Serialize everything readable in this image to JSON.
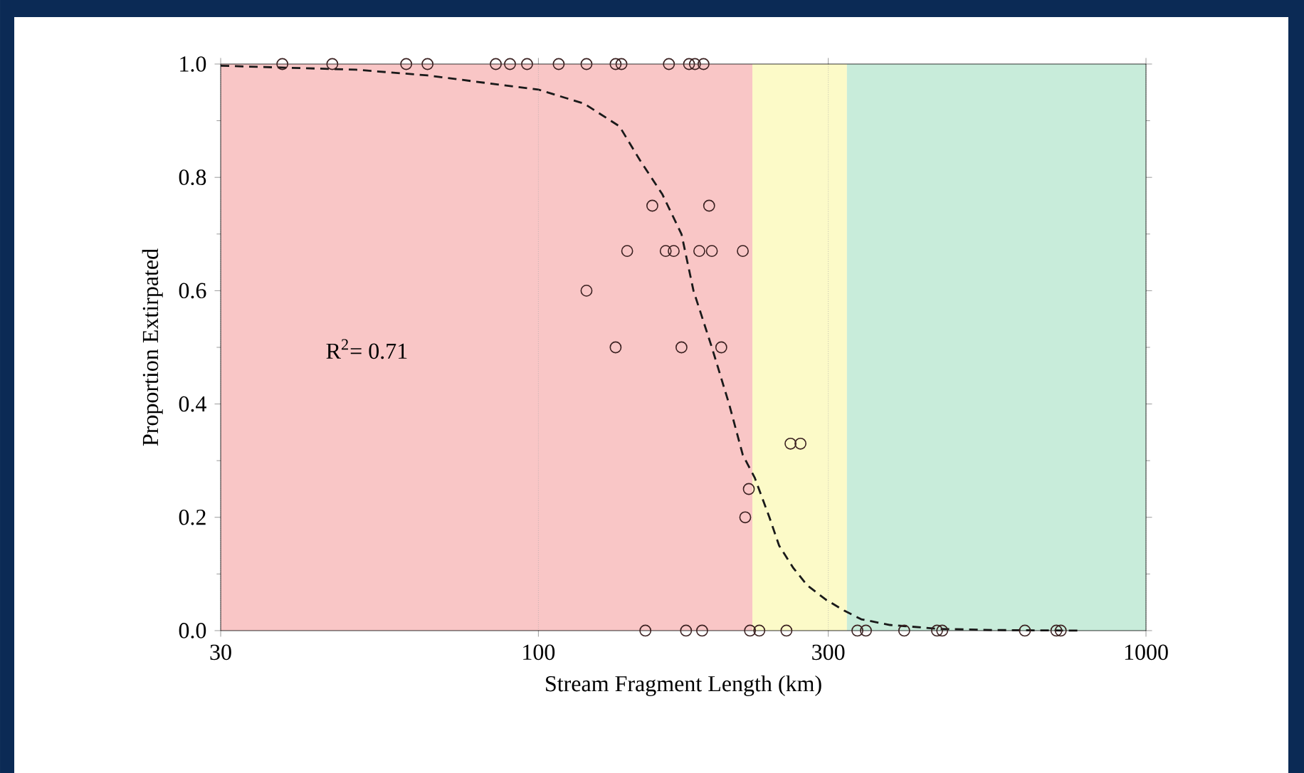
{
  "chart_data": {
    "type": "scatter",
    "xlabel": "Stream Fragment Length (km)",
    "ylabel": "Proportion Extirpated",
    "log": "x",
    "xlim": [
      30,
      1000
    ],
    "ylim": [
      0,
      1
    ],
    "xticks": [
      30,
      100,
      300,
      1000
    ],
    "yticks": [
      {
        "value": 0,
        "label": "0.0"
      },
      {
        "value": 0.2,
        "label": "0.2"
      },
      {
        "value": 0.4,
        "label": "0.4"
      },
      {
        "value": 0.6,
        "label": "0.6"
      },
      {
        "value": 0.8,
        "label": "0.8"
      },
      {
        "value": 1,
        "label": "1.0"
      }
    ],
    "grid": "x",
    "annotations": [
      "R$^{2}$= 0.71"
    ],
    "bands": [
      {
        "axis": "x",
        "from": 30,
        "to": 225,
        "color": "#f9c6c6"
      },
      {
        "axis": "x",
        "from": 225,
        "to": 322,
        "color": "#fcfac8"
      },
      {
        "axis": "x",
        "from": 322,
        "to": 1000,
        "color": "#c8ecda"
      }
    ],
    "series": [
      {
        "marker": "circle",
        "color": "#3a2020",
        "x": [
          37.9,
          45.8,
          60.6,
          65.7,
          85.1,
          89.8,
          95.8,
          108,
          120,
          134,
          137,
          164,
          177,
          181,
          187,
          154,
          191,
          140,
          162,
          167,
          184,
          193,
          217,
          120,
          134,
          172,
          200,
          260,
          270,
          222,
          219,
          150,
          175,
          186,
          223,
          231,
          256,
          335,
          346,
          400,
          453,
          462,
          632,
          712,
          724
        ],
        "values": [
          1,
          1,
          1,
          1,
          1,
          1,
          1,
          1,
          1,
          1,
          1,
          1,
          1,
          1,
          1,
          0.75,
          0.75,
          0.67,
          0.67,
          0.67,
          0.67,
          0.67,
          0.67,
          0.6,
          0.5,
          0.5,
          0.5,
          0.33,
          0.33,
          0.25,
          0.2,
          0,
          0,
          0,
          0,
          0,
          0,
          0,
          0,
          0,
          0,
          0,
          0,
          0,
          0
        ]
      },
      {
        "type": "line",
        "line_style": "dashed",
        "color": "#1a1a1a",
        "x": [
          30,
          50.1,
          65.7,
          81.5,
          100,
          119,
          136,
          147,
          160,
          172,
          180,
          193,
          206,
          217,
          227,
          240,
          249,
          263,
          277,
          297,
          319,
          340,
          379,
          458,
          568,
          785
        ],
        "values": [
          0.997,
          0.99,
          0.98,
          0.967,
          0.955,
          0.93,
          0.89,
          0.83,
          0.77,
          0.7,
          0.6,
          0.5,
          0.4,
          0.31,
          0.27,
          0.2,
          0.15,
          0.11,
          0.08,
          0.055,
          0.035,
          0.02,
          0.01,
          0.003,
          0.001,
          0
        ]
      }
    ]
  }
}
